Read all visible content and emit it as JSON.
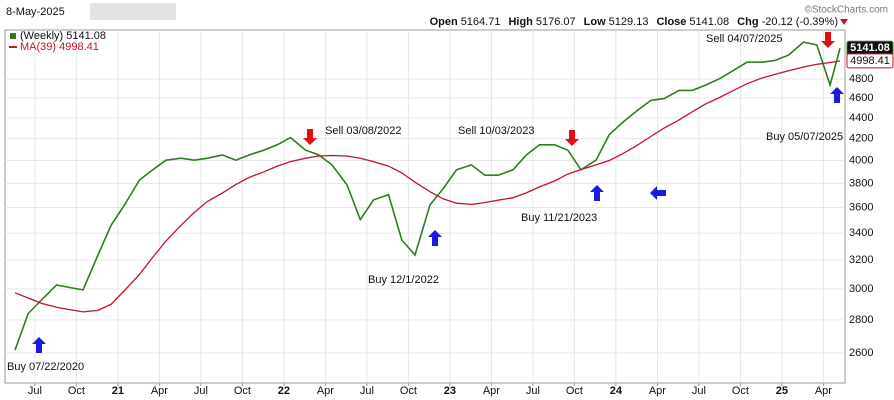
{
  "header": {
    "date": "8-May-2025",
    "watermark": "©StockCharts.com",
    "quote": [
      {
        "label": "Open",
        "value": "5164.71"
      },
      {
        "label": "High",
        "value": "5176.07"
      },
      {
        "label": "Low",
        "value": "5129.13"
      },
      {
        "label": "Close",
        "value": "5141.08"
      },
      {
        "label": "Chg",
        "value": "-20.12 (-0.39%)"
      }
    ]
  },
  "chart_data": {
    "type": "line",
    "log_scale": true,
    "grid": true,
    "x": [
      2020.38,
      2020.46,
      2020.54,
      2020.63,
      2020.71,
      2020.79,
      2020.88,
      2020.96,
      2021.04,
      2021.13,
      2021.21,
      2021.29,
      2021.38,
      2021.46,
      2021.54,
      2021.63,
      2021.71,
      2021.79,
      2021.88,
      2021.96,
      2022.04,
      2022.13,
      2022.21,
      2022.29,
      2022.38,
      2022.46,
      2022.54,
      2022.63,
      2022.71,
      2022.79,
      2022.88,
      2022.96,
      2023.04,
      2023.13,
      2023.21,
      2023.29,
      2023.38,
      2023.46,
      2023.54,
      2023.63,
      2023.71,
      2023.79,
      2023.88,
      2023.96,
      2024.04,
      2024.13,
      2024.21,
      2024.29,
      2024.38,
      2024.46,
      2024.54,
      2024.63,
      2024.71,
      2024.79,
      2024.88,
      2024.96,
      2025.04,
      2025.13,
      2025.21,
      2025.29,
      2025.35
    ],
    "series": [
      {
        "name": "(Weekly) 5141.08",
        "color": "#2e7d1e",
        "last_label": "5141.08",
        "values": [
          2617,
          2840,
          2927,
          3027,
          3010,
          2994,
          3237,
          3462,
          3621,
          3829,
          3917,
          4002,
          4020,
          4002,
          4020,
          4049,
          4002,
          4049,
          4094,
          4143,
          4210,
          4094,
          4049,
          3960,
          3787,
          3503,
          3662,
          3705,
          3348,
          3237,
          3621,
          3757,
          3917,
          3960,
          3870,
          3870,
          3917,
          4049,
          4143,
          4143,
          4094,
          3917,
          4002,
          4238,
          4355,
          4474,
          4575,
          4594,
          4679,
          4679,
          4735,
          4808,
          4895,
          4984,
          4984,
          5004,
          5063,
          5213,
          5180,
          4735,
          5141.08
        ]
      },
      {
        "name": "MA(39) 4998.41",
        "color": "#c8102e",
        "last_label": "4998.41",
        "values": [
          2975,
          2940,
          2905,
          2880,
          2865,
          2850,
          2860,
          2900,
          2990,
          3100,
          3220,
          3340,
          3460,
          3560,
          3650,
          3720,
          3790,
          3850,
          3900,
          3950,
          3990,
          4020,
          4040,
          4045,
          4040,
          4020,
          3990,
          3950,
          3890,
          3810,
          3730,
          3670,
          3635,
          3625,
          3640,
          3660,
          3680,
          3720,
          3770,
          3820,
          3880,
          3920,
          3960,
          4000,
          4060,
          4140,
          4220,
          4300,
          4380,
          4460,
          4540,
          4610,
          4680,
          4750,
          4810,
          4850,
          4890,
          4930,
          4960,
          4980,
          4998.41
        ]
      }
    ],
    "xlim": [
      2020.32,
      2025.38
    ],
    "xticks": [
      {
        "value": 2020.5,
        "label": "Jul"
      },
      {
        "value": 2020.75,
        "label": "Oct"
      },
      {
        "value": 2021,
        "label": "21"
      },
      {
        "value": 2021.25,
        "label": "Apr"
      },
      {
        "value": 2021.5,
        "label": "Jul"
      },
      {
        "value": 2021.75,
        "label": "Oct"
      },
      {
        "value": 2022,
        "label": "22"
      },
      {
        "value": 2022.25,
        "label": "Apr"
      },
      {
        "value": 2022.5,
        "label": "Jul"
      },
      {
        "value": 2022.75,
        "label": "Oct"
      },
      {
        "value": 2023,
        "label": "23"
      },
      {
        "value": 2023.25,
        "label": "Apr"
      },
      {
        "value": 2023.5,
        "label": "Jul"
      },
      {
        "value": 2023.75,
        "label": "Oct"
      },
      {
        "value": 2024,
        "label": "24"
      },
      {
        "value": 2024.25,
        "label": "Apr"
      },
      {
        "value": 2024.5,
        "label": "Jul"
      },
      {
        "value": 2024.75,
        "label": "Oct"
      },
      {
        "value": 2025,
        "label": "25"
      },
      {
        "value": 2025.25,
        "label": "Apr"
      }
    ],
    "ylim": [
      2431,
      5356
    ],
    "yticks": [
      2600,
      2800,
      3000,
      3200,
      3400,
      3600,
      3800,
      4000,
      4200,
      4400,
      4600,
      4800
    ],
    "annotations": [
      "Buy 07/22/2020",
      "Sell 03/08/2022",
      "Buy 12/1/2022",
      "Sell 10/03/2023",
      "Buy 11/21/2023",
      "Sell 04/07/2025",
      "Buy 05/07/2025"
    ]
  }
}
